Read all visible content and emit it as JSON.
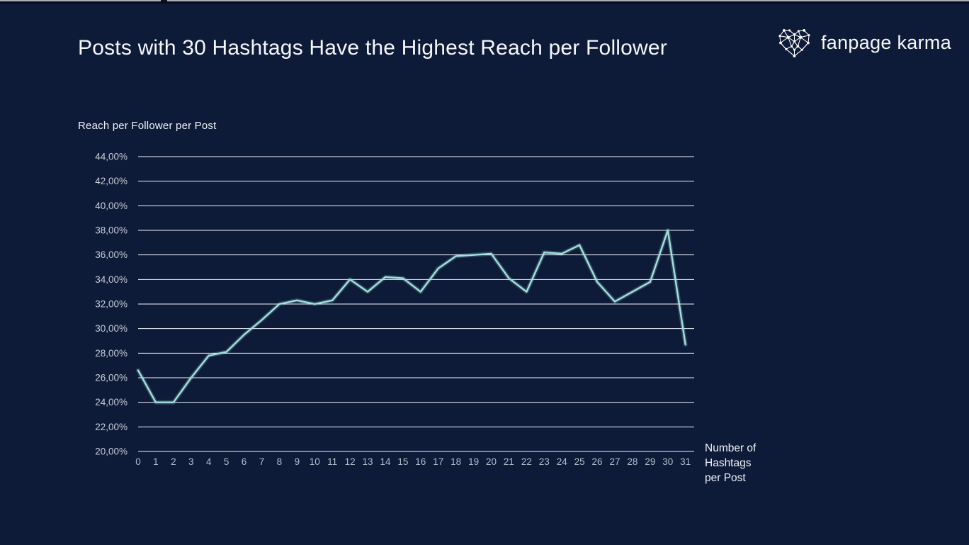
{
  "page": {
    "background_color": "#0e1b38",
    "top_strip_color": "#a9aeb8"
  },
  "header": {
    "title": "Posts with 30 Hashtags Have the Highest Reach per Follower"
  },
  "brand": {
    "name": "fanpage karma",
    "logo": "network-heart"
  },
  "chart_data": {
    "type": "line",
    "title": "Posts with 30 Hashtags Have the Highest Reach per Follower",
    "ylabel": "Reach per Follower per Post",
    "xlabel": "Number of Hashtags per Post",
    "xlabel_display": "Number of\nHashtags\nper Post",
    "x": [
      0,
      1,
      2,
      3,
      4,
      5,
      6,
      7,
      8,
      9,
      10,
      11,
      12,
      13,
      14,
      15,
      16,
      17,
      18,
      19,
      20,
      21,
      22,
      23,
      24,
      25,
      26,
      27,
      28,
      29,
      30,
      31
    ],
    "values": [
      26.6,
      24.0,
      24.0,
      26.0,
      27.8,
      28.1,
      29.5,
      30.7,
      32.0,
      32.3,
      32.0,
      32.3,
      34.0,
      33.0,
      34.2,
      34.1,
      33.0,
      34.9,
      35.9,
      36.0,
      36.1,
      34.1,
      33.0,
      36.2,
      36.1,
      36.8,
      33.8,
      32.2,
      33.0,
      33.8,
      38.0,
      28.7
    ],
    "ylim": [
      20,
      44
    ],
    "ytick_values": [
      44,
      42,
      40,
      38,
      36,
      34,
      32,
      30,
      28,
      26,
      24,
      22,
      20
    ],
    "ytick_labels": [
      "44,00%",
      "42,00%",
      "40,00%",
      "38,00%",
      "36,00%",
      "34,00%",
      "32,00%",
      "30,00%",
      "28,00%",
      "26,00%",
      "24,00%",
      "22,00%",
      "20,00%"
    ],
    "grid": true,
    "legend": "none",
    "line_color": "#a2e1de",
    "gridline_color": "#f2f4f8",
    "ytick_text_color": "#c7ccd6",
    "xtick_text_color": "#b6bdc9"
  }
}
